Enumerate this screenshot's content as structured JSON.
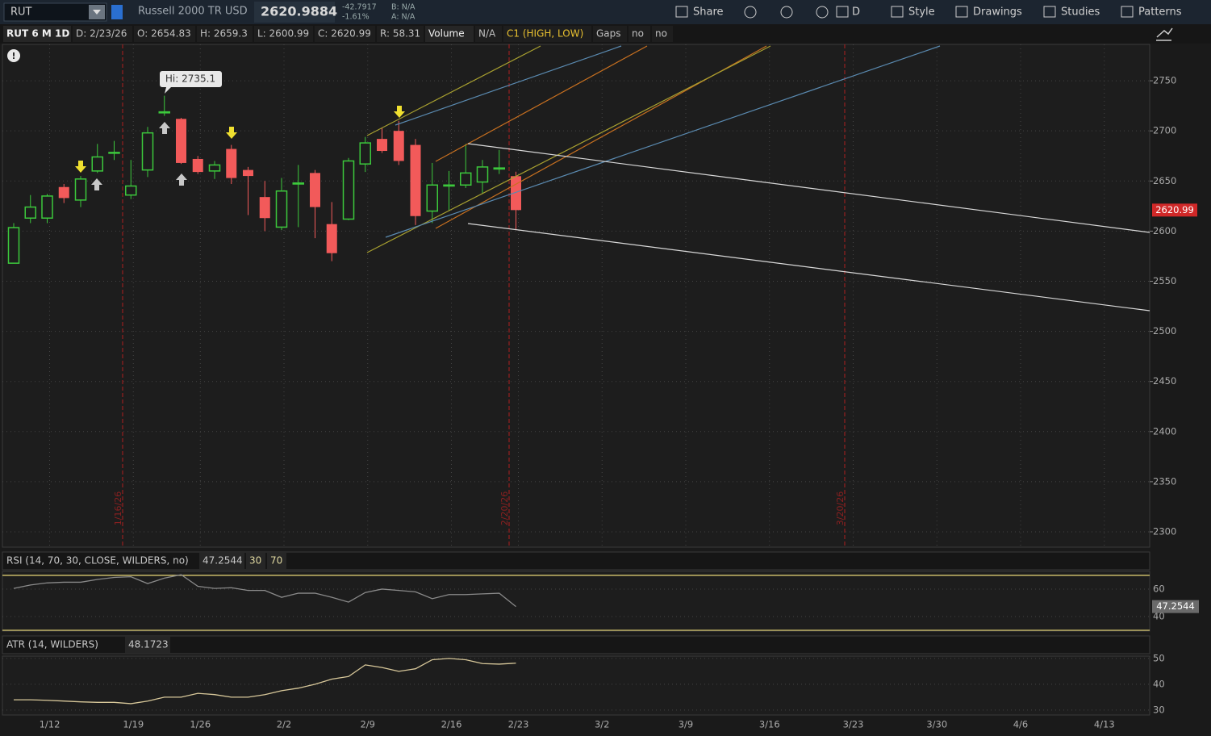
{
  "toolbar": {
    "symbol": "RUT",
    "name": "Russell 2000 TR USD",
    "price": "2620.9884",
    "change": "-42.7917",
    "change_pct": "-1.61%",
    "bid": "B: N/A",
    "ask": "A: N/A",
    "buttons": [
      "Share",
      "D",
      "Style",
      "Drawings",
      "Studies",
      "Patterns"
    ]
  },
  "info_bar": [
    "RUT 6 M 1D",
    "D: 2/23/26",
    "O: 2654.83",
    "H: 2659.3",
    "L: 2600.99",
    "C: 2620.99",
    "R: 58.31",
    "Volume",
    "N/A",
    "C1 (HIGH, LOW)",
    "Gaps",
    "no",
    "no"
  ],
  "chart_data": [
    {
      "type": "candlestick",
      "categories": [
        null,
        null,
        "1/12",
        null,
        null,
        null,
        null,
        "1/19",
        null,
        null,
        null,
        "1/26",
        null,
        null,
        null,
        null,
        "2/2",
        null,
        null,
        null,
        null,
        "2/9",
        null,
        null,
        null,
        null,
        "2/16",
        null,
        null,
        null,
        "2/23",
        null,
        null,
        null,
        null,
        "3/2",
        null,
        null,
        null,
        null,
        "3/9",
        null,
        null,
        null,
        null,
        "3/16",
        null,
        null,
        null,
        null,
        "3/23",
        null,
        null,
        null,
        null,
        "3/30",
        null,
        null,
        null,
        null,
        "4/6",
        null,
        null,
        null,
        null,
        "4/13",
        null,
        null
      ],
      "open": [
        2568,
        2613,
        2613,
        2644,
        2631,
        2660,
        2678,
        2636,
        2661,
        2718,
        2712,
        2672,
        2660,
        2682,
        2661,
        2634,
        2604,
        2647,
        2658,
        2607,
        2612,
        2667,
        2692,
        2700,
        2686,
        2620,
        2645,
        2646,
        2649,
        2662,
        2654.83,
        null,
        null,
        null,
        null,
        null,
        null,
        null,
        null,
        null,
        null,
        null,
        null,
        null,
        null,
        null,
        null,
        null,
        null,
        null,
        null,
        null,
        null,
        null,
        null,
        null,
        null,
        null,
        null,
        null,
        null,
        null,
        null,
        null,
        null,
        null,
        null,
        null
      ],
      "high": [
        2608,
        2636,
        2637,
        2647,
        2655,
        2687,
        2690,
        2671,
        2704,
        2735.1,
        2713,
        2675,
        2670,
        2686,
        2664,
        2650,
        2653,
        2666,
        2661,
        2629,
        2673,
        2694,
        2703,
        2710,
        2692,
        2668,
        2660,
        2687,
        2671,
        2681,
        2659.3,
        null,
        null,
        null,
        null,
        null,
        null,
        null,
        null,
        null,
        null,
        null,
        null,
        null,
        null,
        null,
        null,
        null,
        null,
        null,
        null,
        null,
        null,
        null,
        null,
        null,
        null,
        null,
        null,
        null,
        null,
        null,
        null,
        null,
        null,
        null,
        null,
        null
      ],
      "low": [
        2568,
        2608,
        2608,
        2628,
        2624,
        2658,
        2671,
        2632,
        2654,
        2715,
        2667,
        2657,
        2652,
        2647,
        2616,
        2600,
        2601,
        2604,
        2593,
        2570,
        2611,
        2659,
        2678,
        2666,
        2606,
        2608,
        2620,
        2643,
        2637,
        2657,
        2600.99,
        null,
        null,
        null,
        null,
        null,
        null,
        null,
        null,
        null,
        null,
        null,
        null,
        null,
        null,
        null,
        null,
        null,
        null,
        null,
        null,
        null,
        null,
        null,
        null,
        null,
        null,
        null,
        null,
        null,
        null,
        null,
        null,
        null,
        null,
        null,
        null,
        null
      ],
      "close": [
        2603.5,
        2624,
        2635,
        2633,
        2652,
        2674,
        2678.5,
        2645,
        2698,
        2719,
        2668,
        2659,
        2666,
        2653,
        2655,
        2613,
        2640,
        2648,
        2624,
        2578,
        2670,
        2688,
        2680,
        2670,
        2615,
        2646,
        2646,
        2658,
        2664,
        2663,
        2620.99,
        null,
        null,
        null,
        null,
        null,
        null,
        null,
        null,
        null,
        null,
        null,
        null,
        null,
        null,
        null,
        null,
        null,
        null,
        null,
        null,
        null,
        null,
        null,
        null,
        null,
        null,
        null,
        null,
        null,
        null,
        null,
        null,
        null,
        null,
        null,
        null,
        null
      ],
      "up_color": "#3cc83c",
      "down_color": "#f25a5a",
      "ylim": [
        2284.7,
        2786.3
      ],
      "yticks": [
        2300,
        2350,
        2400,
        2450,
        2500,
        2550,
        2600,
        2650,
        2700,
        2750
      ],
      "grid": true,
      "last_value_label": "2620.99",
      "annotation": "Hi: 2735.1",
      "event_labels": [
        "1/16/26",
        "2/20/26",
        "3/20/26"
      ]
    },
    {
      "type": "line",
      "title": "RSI (14, 70, 30, CLOSE, WILDERS, no)",
      "color": "#8a8a8a",
      "values": [
        60.5,
        63,
        64.5,
        65,
        65,
        67,
        68.5,
        69,
        64,
        68,
        70.5,
        62,
        60.5,
        61,
        59,
        59,
        54,
        57,
        57,
        54,
        50.5,
        57.5,
        60,
        59,
        58,
        53,
        56,
        56,
        56.5,
        57,
        47.2544,
        null,
        null,
        null,
        null,
        null,
        null,
        null,
        null,
        null,
        null,
        null,
        null,
        null,
        null,
        null,
        null,
        null,
        null,
        null,
        null,
        null,
        null,
        null,
        null,
        null,
        null,
        null,
        null,
        null,
        null,
        null,
        null,
        null,
        null,
        null,
        null,
        null
      ],
      "levels": [
        30,
        70
      ],
      "level_color": "#d8c870",
      "ylim": [
        29.4,
        72.9
      ],
      "yticks": [
        40,
        60
      ],
      "last_value_label": "47.2544"
    },
    {
      "type": "line",
      "title": "ATR (14, WILDERS)",
      "color": "#d8c89a",
      "values": [
        34,
        34,
        33.8,
        33.5,
        33.2,
        33,
        33,
        32.5,
        33.5,
        35,
        35,
        36.5,
        36,
        35,
        35,
        36,
        37.5,
        38.5,
        40,
        42,
        43,
        47.5,
        46.5,
        45,
        46,
        49.5,
        50,
        49.5,
        48,
        47.8,
        48.1723,
        null,
        null,
        null,
        null,
        null,
        null,
        null,
        null,
        null,
        null,
        null,
        null,
        null,
        null,
        null,
        null,
        null,
        null,
        null,
        null,
        null,
        null,
        null,
        null,
        null,
        null,
        null,
        null,
        null,
        null,
        null,
        null,
        null,
        null,
        null,
        null,
        null
      ],
      "ylim": [
        28.1,
        50.9
      ],
      "yticks": [
        30,
        40,
        50
      ],
      "last_value_label": "48.1723"
    }
  ]
}
